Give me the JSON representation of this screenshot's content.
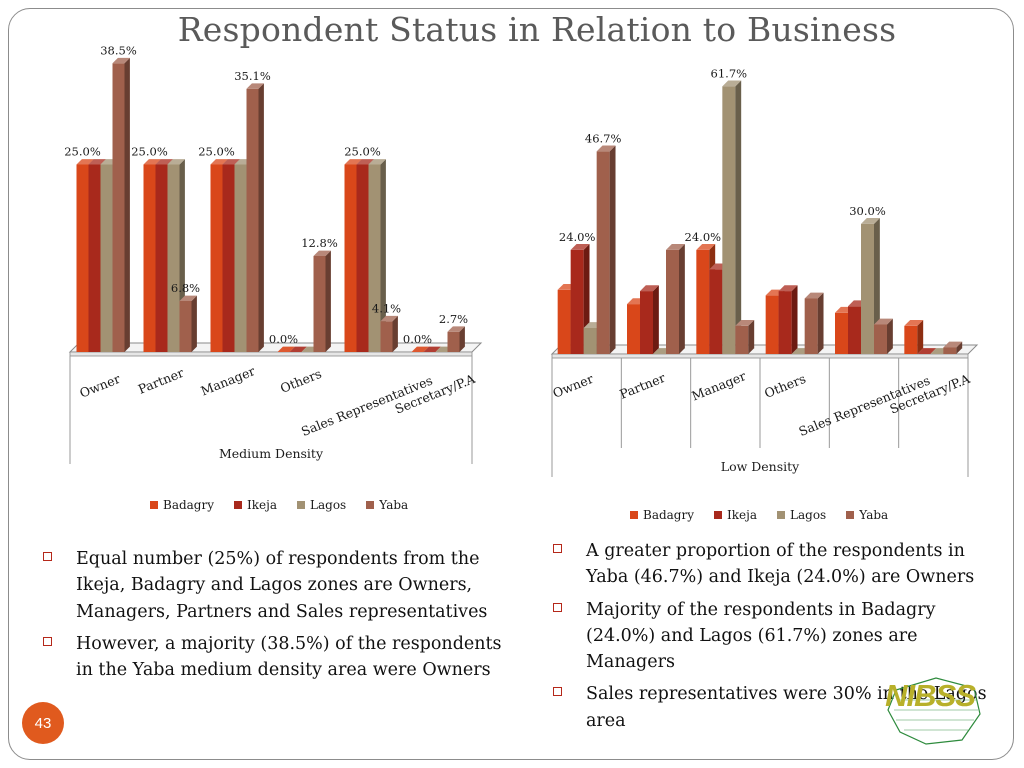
{
  "title": "Respondent Status in Relation to Business",
  "page_number": "43",
  "colors": {
    "Badagry": "#d9471a",
    "Ikeja": "#a8291c",
    "Lagos": "#a29273",
    "Yaba": "#a0604c",
    "accent": "#e05a1e",
    "bullet": "#b5281a"
  },
  "chart_data": [
    {
      "type": "bar",
      "style": "3d-clustered-column",
      "xlabel": "Medium Density",
      "categories": [
        "Owner",
        "Partner",
        "Manager",
        "Others",
        "Sales Representatives",
        "Secretary/P.A"
      ],
      "series": [
        {
          "name": "Badagry",
          "values": [
            25.0,
            25.0,
            25.0,
            0.0,
            25.0,
            0.0
          ]
        },
        {
          "name": "Ikeja",
          "values": [
            25.0,
            25.0,
            25.0,
            0.0,
            25.0,
            0.0
          ]
        },
        {
          "name": "Lagos",
          "values": [
            25.0,
            25.0,
            25.0,
            0.0,
            25.0,
            0.0
          ]
        },
        {
          "name": "Yaba",
          "values": [
            38.5,
            6.8,
            35.1,
            12.8,
            4.1,
            2.7
          ]
        }
      ],
      "data_labels": [
        {
          "text": "25.0%",
          "category": 0,
          "series": 0
        },
        {
          "text": "38.5%",
          "category": 0,
          "series": 3
        },
        {
          "text": "25.0%",
          "category": 1,
          "series": 0
        },
        {
          "text": "6.8%",
          "category": 1,
          "series": 3
        },
        {
          "text": "25.0%",
          "category": 2,
          "series": 0
        },
        {
          "text": "35.1%",
          "category": 2,
          "series": 3
        },
        {
          "text": "0.0%",
          "category": 3,
          "series": 0
        },
        {
          "text": "12.8%",
          "category": 3,
          "series": 3
        },
        {
          "text": "25.0%",
          "category": 4,
          "series": 1
        },
        {
          "text": "4.1%",
          "category": 4,
          "series": 3
        },
        {
          "text": "0.0%",
          "category": 5,
          "series": 0
        },
        {
          "text": "2.7%",
          "category": 5,
          "series": 3
        }
      ],
      "ylim": [
        0,
        40
      ],
      "grid": false,
      "legend_position": "bottom"
    },
    {
      "type": "bar",
      "style": "3d-clustered-column",
      "xlabel": "Low Density",
      "categories": [
        "Owner",
        "Partner",
        "Manager",
        "Others",
        "Sales Representatives",
        "Secretary/P.A"
      ],
      "series": [
        {
          "name": "Badagry",
          "values": [
            14.8,
            11.5,
            24.0,
            13.5,
            9.5,
            6.5
          ]
        },
        {
          "name": "Ikeja",
          "values": [
            24.0,
            14.5,
            19.5,
            14.5,
            11.0,
            0.0
          ]
        },
        {
          "name": "Lagos",
          "values": [
            6.0,
            0.0,
            61.7,
            0.0,
            30.0,
            0.0
          ]
        },
        {
          "name": "Yaba",
          "values": [
            46.7,
            24.0,
            6.5,
            12.8,
            6.8,
            1.5
          ]
        }
      ],
      "data_labels": [
        {
          "text": "24.0%",
          "category": 0,
          "series": 1
        },
        {
          "text": "46.7%",
          "category": 0,
          "series": 3
        },
        {
          "text": "24.0%",
          "category": 2,
          "series": 0
        },
        {
          "text": "61.7%",
          "category": 2,
          "series": 2
        },
        {
          "text": "30.0%",
          "category": 4,
          "series": 2
        }
      ],
      "ylim": [
        0,
        65
      ],
      "grid": false,
      "legend_position": "bottom"
    }
  ],
  "left_bullets": [
    "Equal number (25%) of respondents from the Ikeja, Badagry and Lagos zones are Owners, Managers, Partners and Sales representatives",
    "However, a majority (38.5%) of the respondents in the Yaba medium density area were Owners"
  ],
  "right_bullets": [
    "A greater proportion of the respondents in Yaba (46.7%) and Ikeja (24.0%) are Owners",
    "Majority of the respondents in Badagry (24.0%) and Lagos (61.7%) zones are Managers",
    "Sales representatives were 30% in the Lagos area"
  ],
  "logo": {
    "text": "NIBSS",
    "icon": "nigeria-map-icon"
  }
}
